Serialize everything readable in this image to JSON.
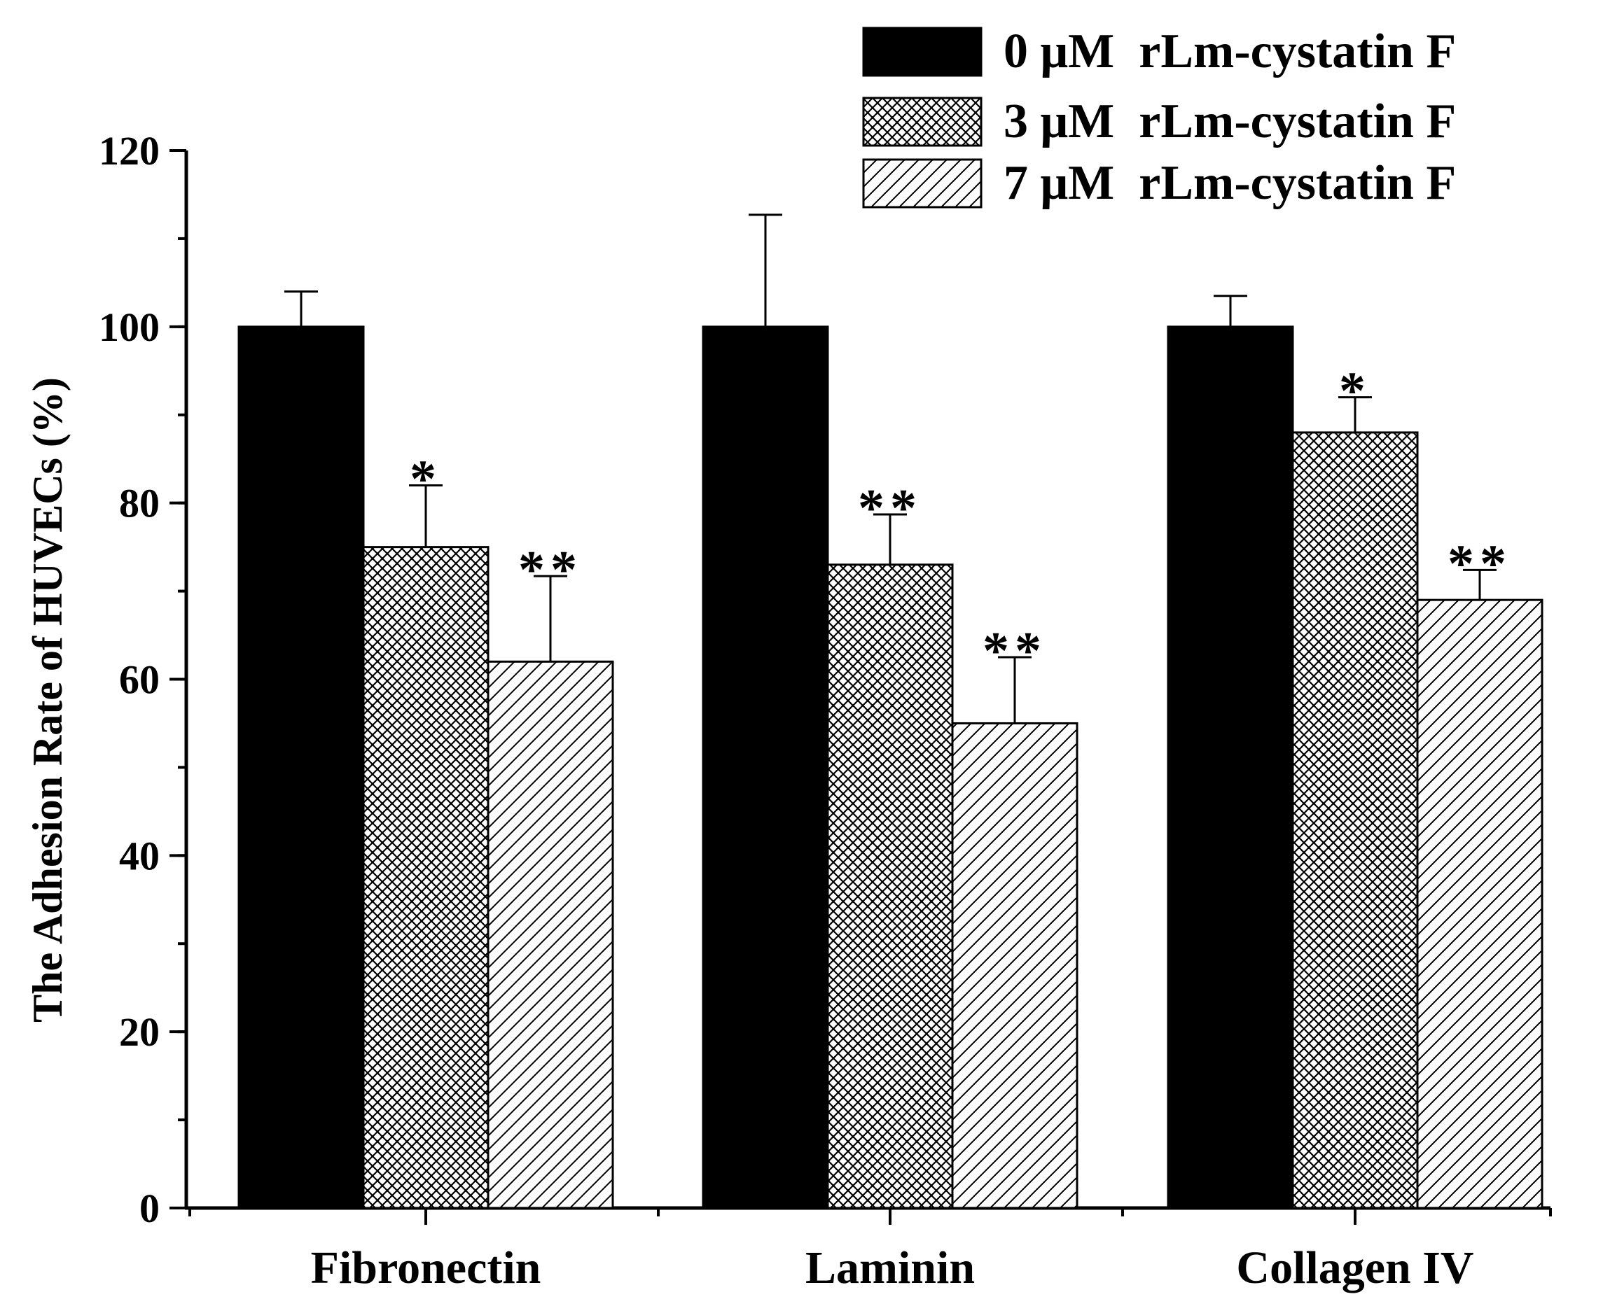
{
  "chart_data": {
    "type": "bar",
    "title": "",
    "xlabel": "",
    "ylabel": "The Adhesion Rate of HUVECs (%)",
    "ylim": [
      0,
      120
    ],
    "yticks": [
      0,
      20,
      40,
      60,
      80,
      100,
      120
    ],
    "ytick_labels": [
      "0",
      "20",
      "40",
      "60",
      "80",
      "100",
      "120"
    ],
    "y_minor_step": 10,
    "categories": [
      "Fibronectin",
      "Laminin",
      "Collagen IV"
    ],
    "legend_position": "top-right",
    "series": [
      {
        "name": "0 μM  rLm-cystatin F",
        "pattern": "solid",
        "values": [
          100,
          100,
          100
        ],
        "errors": [
          4,
          12.7,
          3.5
        ],
        "significance": [
          "",
          "",
          ""
        ]
      },
      {
        "name": "3 μM  rLm-cystatin F",
        "pattern": "crosshatch",
        "values": [
          75,
          73,
          88
        ],
        "errors": [
          7,
          5.7,
          4
        ],
        "significance": [
          "*",
          "**",
          "*"
        ]
      },
      {
        "name": "7 μM  rLm-cystatin F",
        "pattern": "diagonal",
        "values": [
          62,
          55,
          69
        ],
        "errors": [
          9.7,
          7.5,
          3.4
        ],
        "significance": [
          "**",
          "**",
          "**"
        ]
      }
    ]
  },
  "colors": {
    "bar_fill": "#000000",
    "axis": "#000000",
    "background": "#ffffff"
  }
}
